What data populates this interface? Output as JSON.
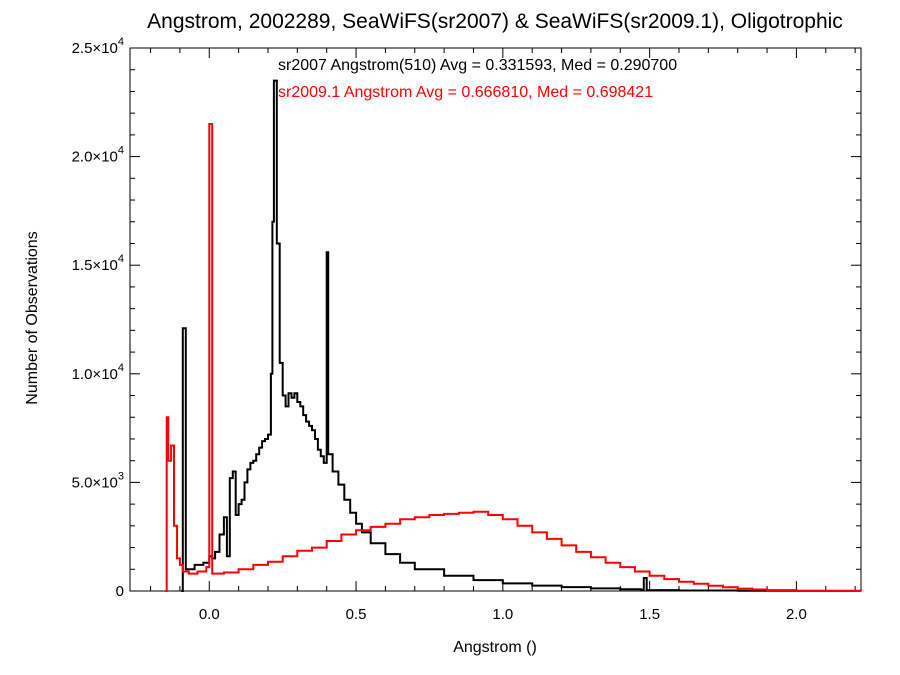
{
  "chart_data": {
    "type": "line",
    "title": "Angstrom, 2002289, SeaWiFS(sr2007) & SeaWiFS(sr2009.1), Oligotrophic",
    "xlabel": "Angstrom ()",
    "ylabel": "Number of Observations",
    "xlim": [
      -0.27,
      2.22
    ],
    "ylim": [
      0,
      25000
    ],
    "xticks": [
      {
        "value": 0.0,
        "label": "0.0"
      },
      {
        "value": 0.5,
        "label": "0.5"
      },
      {
        "value": 1.0,
        "label": "1.0"
      },
      {
        "value": 1.5,
        "label": "1.5"
      },
      {
        "value": 2.0,
        "label": "2.0"
      }
    ],
    "yticks": [
      {
        "value": 0,
        "mant": "0",
        "exp": ""
      },
      {
        "value": 5000,
        "mant": "5.0×10",
        "exp": "3"
      },
      {
        "value": 10000,
        "mant": "1.0×10",
        "exp": "4"
      },
      {
        "value": 15000,
        "mant": "1.5×10",
        "exp": "4"
      },
      {
        "value": 20000,
        "mant": "2.0×10",
        "exp": "4"
      },
      {
        "value": 25000,
        "mant": "2.5×10",
        "exp": "4"
      }
    ],
    "grid": false,
    "legend_position": "top-center",
    "series": [
      {
        "name": "sr2007 Angstrom(510) Avg = 0.331593, Med = 0.290700",
        "color": "#000000",
        "points": [
          [
            -0.095,
            0
          ],
          [
            -0.09,
            12100
          ],
          [
            -0.08,
            1000
          ],
          [
            -0.05,
            1200
          ],
          [
            -0.02,
            1300
          ],
          [
            0.0,
            1600
          ],
          [
            0.01,
            1500
          ],
          [
            0.02,
            1800
          ],
          [
            0.035,
            2600
          ],
          [
            0.05,
            3400
          ],
          [
            0.06,
            1600
          ],
          [
            0.07,
            5200
          ],
          [
            0.08,
            5500
          ],
          [
            0.09,
            3500
          ],
          [
            0.1,
            4000
          ],
          [
            0.11,
            4200
          ],
          [
            0.12,
            5000
          ],
          [
            0.13,
            5600
          ],
          [
            0.14,
            5900
          ],
          [
            0.15,
            6000
          ],
          [
            0.16,
            6300
          ],
          [
            0.17,
            6600
          ],
          [
            0.18,
            6900
          ],
          [
            0.19,
            7000
          ],
          [
            0.2,
            7200
          ],
          [
            0.21,
            10000
          ],
          [
            0.215,
            17000
          ],
          [
            0.22,
            23500
          ],
          [
            0.23,
            16000
          ],
          [
            0.24,
            10500
          ],
          [
            0.25,
            9000
          ],
          [
            0.26,
            8500
          ],
          [
            0.27,
            9100
          ],
          [
            0.28,
            8900
          ],
          [
            0.29,
            9100
          ],
          [
            0.3,
            8700
          ],
          [
            0.31,
            8500
          ],
          [
            0.32,
            8100
          ],
          [
            0.33,
            7800
          ],
          [
            0.34,
            7600
          ],
          [
            0.35,
            7400
          ],
          [
            0.36,
            7000
          ],
          [
            0.37,
            6500
          ],
          [
            0.38,
            6200
          ],
          [
            0.39,
            5900
          ],
          [
            0.4,
            15600
          ],
          [
            0.405,
            6300
          ],
          [
            0.42,
            5500
          ],
          [
            0.44,
            4900
          ],
          [
            0.46,
            4200
          ],
          [
            0.48,
            3600
          ],
          [
            0.5,
            3100
          ],
          [
            0.52,
            2700
          ],
          [
            0.55,
            2200
          ],
          [
            0.6,
            1700
          ],
          [
            0.65,
            1300
          ],
          [
            0.7,
            1000
          ],
          [
            0.8,
            700
          ],
          [
            0.9,
            500
          ],
          [
            1.0,
            350
          ],
          [
            1.1,
            250
          ],
          [
            1.2,
            180
          ],
          [
            1.3,
            120
          ],
          [
            1.4,
            80
          ],
          [
            1.47,
            60
          ],
          [
            1.48,
            600
          ],
          [
            1.49,
            40
          ],
          [
            1.6,
            25
          ],
          [
            1.8,
            10
          ],
          [
            2.0,
            5
          ],
          [
            2.22,
            0
          ]
        ]
      },
      {
        "name": "sr2009.1 Angstrom Avg = 0.666810, Med = 0.698421",
        "color": "#ff0000",
        "points": [
          [
            -0.15,
            0
          ],
          [
            -0.145,
            8000
          ],
          [
            -0.14,
            6000
          ],
          [
            -0.13,
            6700
          ],
          [
            -0.12,
            3000
          ],
          [
            -0.11,
            1500
          ],
          [
            -0.1,
            1200
          ],
          [
            -0.09,
            900
          ],
          [
            -0.07,
            800
          ],
          [
            -0.04,
            900
          ],
          [
            -0.01,
            1100
          ],
          [
            0.0,
            21500
          ],
          [
            0.01,
            800
          ],
          [
            0.05,
            850
          ],
          [
            0.1,
            1000
          ],
          [
            0.15,
            1200
          ],
          [
            0.2,
            1350
          ],
          [
            0.25,
            1600
          ],
          [
            0.3,
            1850
          ],
          [
            0.35,
            2000
          ],
          [
            0.4,
            2300
          ],
          [
            0.45,
            2600
          ],
          [
            0.5,
            2800
          ],
          [
            0.55,
            2950
          ],
          [
            0.6,
            3100
          ],
          [
            0.65,
            3300
          ],
          [
            0.7,
            3400
          ],
          [
            0.75,
            3500
          ],
          [
            0.8,
            3550
          ],
          [
            0.85,
            3600
          ],
          [
            0.9,
            3650
          ],
          [
            0.95,
            3500
          ],
          [
            1.0,
            3300
          ],
          [
            1.05,
            3000
          ],
          [
            1.1,
            2700
          ],
          [
            1.15,
            2400
          ],
          [
            1.2,
            2100
          ],
          [
            1.25,
            1800
          ],
          [
            1.3,
            1550
          ],
          [
            1.35,
            1300
          ],
          [
            1.4,
            1100
          ],
          [
            1.45,
            900
          ],
          [
            1.5,
            700
          ],
          [
            1.55,
            550
          ],
          [
            1.6,
            430
          ],
          [
            1.65,
            330
          ],
          [
            1.7,
            240
          ],
          [
            1.75,
            170
          ],
          [
            1.8,
            110
          ],
          [
            1.85,
            70
          ],
          [
            1.9,
            40
          ],
          [
            2.0,
            10
          ],
          [
            2.1,
            3
          ],
          [
            2.22,
            0
          ]
        ]
      }
    ]
  }
}
